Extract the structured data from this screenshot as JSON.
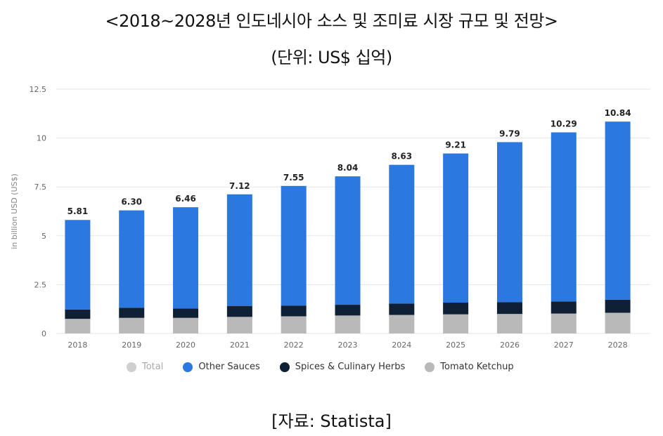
{
  "title": "<2018~2028년 인도네시아 소스 및 조미료 시장 규모 및 전망>",
  "subtitle": "(단위: US$ 십억)",
  "source": "[자료: Statista]",
  "colors": {
    "total": "#cfcfcf",
    "other_sauces": "#2a78e0",
    "spices": "#0f2034",
    "ketchup": "#b9b9b9",
    "grid": "#e6e6e6",
    "axis_text": "#666666"
  },
  "chart_data": {
    "type": "bar",
    "stacked": true,
    "ylabel": "in billion USD (US$)",
    "ylim": [
      0,
      12.5
    ],
    "yticks": [
      0,
      2.5,
      5,
      7.5,
      10,
      12.5
    ],
    "ytick_labels": [
      "0",
      "2.5",
      "5",
      "7.5",
      "10",
      "12.5"
    ],
    "categories": [
      "2018",
      "2019",
      "2020",
      "2021",
      "2022",
      "2023",
      "2024",
      "2025",
      "2026",
      "2027",
      "2028"
    ],
    "totals": [
      5.81,
      6.3,
      6.46,
      7.12,
      7.55,
      8.04,
      8.63,
      9.21,
      9.79,
      10.29,
      10.84
    ],
    "total_labels": [
      "5.81",
      "6.30",
      "6.46",
      "7.12",
      "7.55",
      "8.04",
      "8.63",
      "9.21",
      "9.79",
      "10.29",
      "10.84"
    ],
    "series": [
      {
        "name": "Tomato Ketchup",
        "color_key": "ketchup",
        "values": [
          0.75,
          0.8,
          0.8,
          0.85,
          0.88,
          0.92,
          0.95,
          0.98,
          1.0,
          1.02,
          1.06
        ]
      },
      {
        "name": "Spices & Culinary Herbs",
        "color_key": "spices",
        "values": [
          0.48,
          0.52,
          0.48,
          0.55,
          0.55,
          0.55,
          0.58,
          0.6,
          0.6,
          0.62,
          0.67
        ]
      },
      {
        "name": "Other Sauces",
        "color_key": "other_sauces",
        "values": [
          4.58,
          4.98,
          5.18,
          5.72,
          6.12,
          6.57,
          7.1,
          7.63,
          8.19,
          8.65,
          9.11
        ]
      }
    ],
    "legend": [
      {
        "label": "Total",
        "color_key": "total"
      },
      {
        "label": "Other Sauces",
        "color_key": "other_sauces"
      },
      {
        "label": "Spices & Culinary Herbs",
        "color_key": "spices"
      },
      {
        "label": "Tomato Ketchup",
        "color_key": "ketchup"
      }
    ],
    "legend_position": "bottom",
    "grid": true
  }
}
